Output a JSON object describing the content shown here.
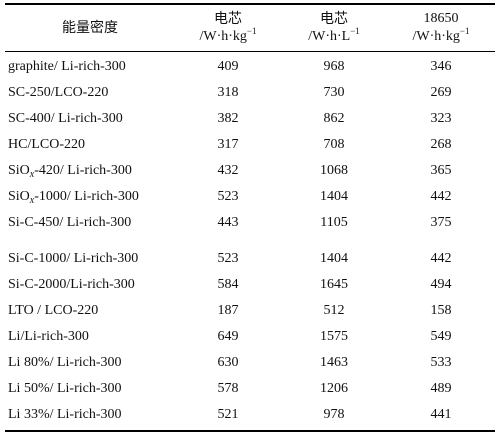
{
  "header": {
    "col0": "能量密度",
    "col1_top": "电芯",
    "col1_bottom": "/W·h·kg",
    "col1_exp": "−1",
    "col2_top": "电芯",
    "col2_bottom": "/W·h·L",
    "col2_exp": "−1",
    "col3_top": "18650",
    "col3_bottom": "/W·h·kg",
    "col3_exp": "−1"
  },
  "rows": [
    {
      "name": "graphite/ Li-rich-300",
      "v1": "409",
      "v2": "968",
      "v3": "346"
    },
    {
      "name": "SC-250/LCO-220",
      "v1": "318",
      "v2": "730",
      "v3": "269"
    },
    {
      "name": "SC-400/ Li-rich-300",
      "v1": "382",
      "v2": "862",
      "v3": "323"
    },
    {
      "name": "HC/LCO-220",
      "v1": "317",
      "v2": "708",
      "v3": "268"
    },
    {
      "name_a": "SiO",
      "name_sub": "x",
      "name_b": "-420/ Li-rich-300",
      "v1": "432",
      "v2": "1068",
      "v3": "365"
    },
    {
      "name_a": "SiO",
      "name_sub": "x",
      "name_b": "-1000/ Li-rich-300",
      "v1": "523",
      "v2": "1404",
      "v3": "442"
    },
    {
      "name": "Si-C-450/ Li-rich-300",
      "v1": "443",
      "v2": "1105",
      "v3": "375"
    },
    {
      "name": "Si-C-1000/ Li-rich-300",
      "v1": "523",
      "v2": "1404",
      "v3": "442"
    },
    {
      "name": "Si-C-2000/Li-rich-300",
      "v1": "584",
      "v2": "1645",
      "v3": "494"
    },
    {
      "name": "LTO / LCO-220",
      "v1": "187",
      "v2": "512",
      "v3": "158"
    },
    {
      "name": "Li/Li-rich-300",
      "v1": "649",
      "v2": "1575",
      "v3": "549"
    },
    {
      "name": "Li 80%/ Li-rich-300",
      "v1": "630",
      "v2": "1463",
      "v3": "533"
    },
    {
      "name": "Li 50%/ Li-rich-300",
      "v1": "578",
      "v2": "1206",
      "v3": "489"
    },
    {
      "name": "Li 33%/ Li-rich-300",
      "v1": "521",
      "v2": "978",
      "v3": "441"
    }
  ]
}
